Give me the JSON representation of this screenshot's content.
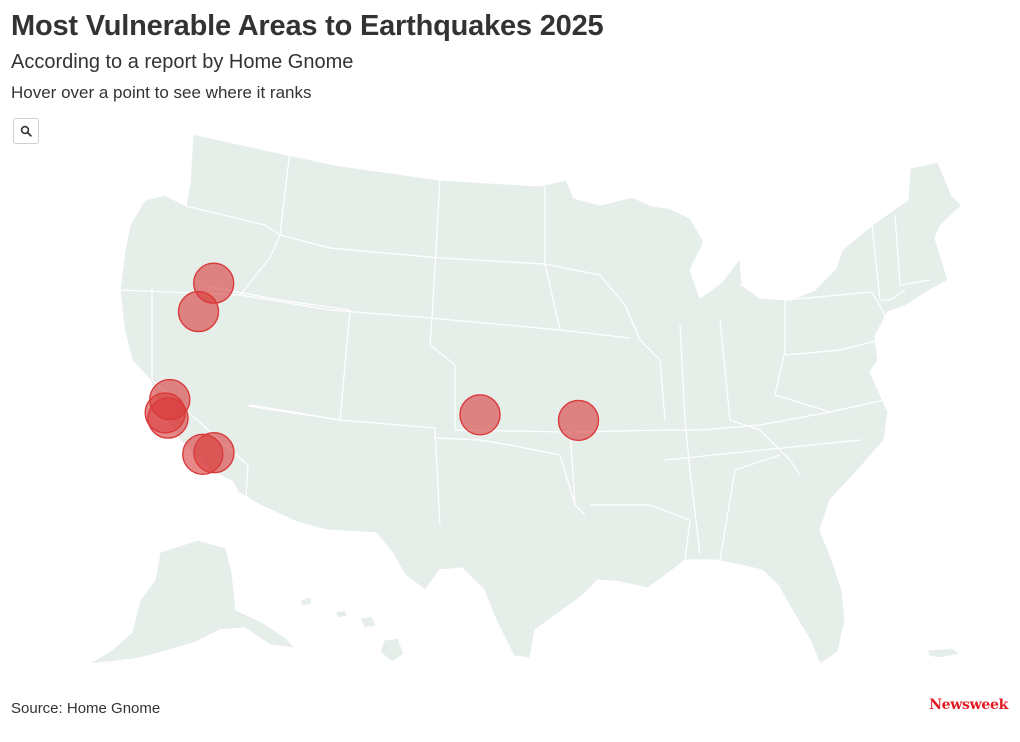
{
  "header": {
    "title": "Most Vulnerable Areas to Earthquakes 2025",
    "subtitle": "According to a report by Home Gnome",
    "instruction": "Hover over a point to see where it ranks"
  },
  "toolbar": {
    "zoom_icon": "search-icon"
  },
  "map": {
    "projection": "albers-usa",
    "land_color": "#e6eeea",
    "marker_color": "#d93a3a",
    "points": [
      {
        "lon": -122.33,
        "lat": 47.61
      },
      {
        "lon": -122.68,
        "lat": 45.52
      },
      {
        "lon": -122.27,
        "lat": 38.8
      },
      {
        "lon": -122.27,
        "lat": 37.8
      },
      {
        "lon": -121.89,
        "lat": 37.34
      },
      {
        "lon": -118.24,
        "lat": 34.05
      },
      {
        "lon": -117.4,
        "lat": 34.05
      },
      {
        "lon": -97.52,
        "lat": 35.47
      },
      {
        "lon": -90.05,
        "lat": 35.15
      }
    ]
  },
  "footer": {
    "source": "Source: Home Gnome",
    "logo": "Newsweek"
  }
}
